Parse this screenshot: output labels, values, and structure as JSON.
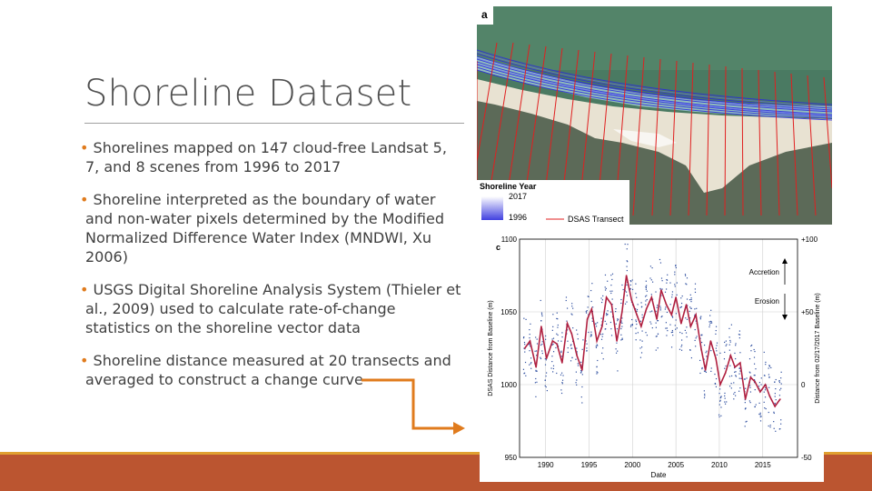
{
  "slide": {
    "title": "Shoreline Dataset",
    "bullets": [
      "Shorelines mapped on 147 cloud-free Landsat 5, 7,  and 8 scenes from 1996 to 2017",
      "Shoreline interpreted as the boundary of water and non-water pixels determined by the Modified Normalized Difference Water Index (MNDWI, Xu 2006)",
      "USGS Digital Shoreline Analysis System (Thieler et al., 2009) used to calculate rate-of-change statistics on the shoreline vector data",
      "Shoreline distance measured at 20 transects and averaged to construct a change curve"
    ],
    "bullet_marker": "•"
  },
  "map_figure": {
    "panel_label": "a",
    "legend": {
      "title": "Shoreline Year",
      "year_top": "2017",
      "year_bottom": "1996",
      "transect_label": "DSAS Transect"
    }
  },
  "chart_data": {
    "type": "line",
    "panel_label": "c",
    "xlabel": "Date",
    "ylabel_left": "DSAS Distance from Baseline (m)",
    "ylabel_right": "Distance from 02/17/2017 Baseline (m)",
    "x_ticks": [
      "1990",
      "1995",
      "2000",
      "2005",
      "2010",
      "2015"
    ],
    "x_ticks_values": [
      1990,
      1995,
      2000,
      2005,
      2010,
      2015
    ],
    "xlim": [
      1987,
      2019
    ],
    "y_ticks_left": [
      "950",
      "1000",
      "1050",
      "1100"
    ],
    "y_ticks_left_values": [
      950,
      1000,
      1050,
      1100
    ],
    "ylim": [
      950,
      1100
    ],
    "y_ticks_right": [
      "-50",
      "0",
      "+50",
      "+100"
    ],
    "annotations": [
      "Accretion",
      "Erosion"
    ],
    "grid": true,
    "series": [
      {
        "x": [
          1987.6,
          1988.2,
          1988.9,
          1989.5,
          1990.1,
          1990.8,
          1991.3,
          1991.9,
          1992.5,
          1993.0,
          1993.6,
          1994.2,
          1994.8,
          1995.3,
          1995.9,
          1996.5,
          1997.0,
          1997.6,
          1998.2,
          1998.8,
          1999.3,
          1999.9,
          2000.5,
          2001.0,
          2001.6,
          2002.2,
          2002.8,
          2003.3,
          2003.9,
          2004.5,
          2005.0,
          2005.6,
          2006.2,
          2006.7,
          2007.3,
          2007.9,
          2008.4,
          2009.0,
          2009.6,
          2010.1,
          2010.7,
          2011.3,
          2011.8,
          2012.4,
          2013.0,
          2013.6,
          2014.1,
          2014.7,
          2015.3,
          2015.8,
          2016.4,
          2017.0
        ],
        "values": [
          1025,
          1030,
          1012,
          1040,
          1018,
          1030,
          1028,
          1015,
          1042,
          1035,
          1020,
          1010,
          1045,
          1052,
          1030,
          1040,
          1060,
          1055,
          1030,
          1050,
          1075,
          1058,
          1048,
          1040,
          1052,
          1060,
          1045,
          1065,
          1055,
          1048,
          1060,
          1042,
          1055,
          1040,
          1048,
          1025,
          1010,
          1030,
          1018,
          1000,
          1008,
          1020,
          1012,
          1015,
          990,
          1005,
          1002,
          995,
          1000,
          992,
          985,
          990
        ],
        "color": "#b02040"
      }
    ]
  },
  "colors": {
    "bottom_bar": "#bb5530",
    "bottom_bar_accent": "#e0a030",
    "arrow": "#e07b1d",
    "bullet": "#e07b1d",
    "series_line": "#b02040",
    "scatter_points": "#3050a0"
  }
}
